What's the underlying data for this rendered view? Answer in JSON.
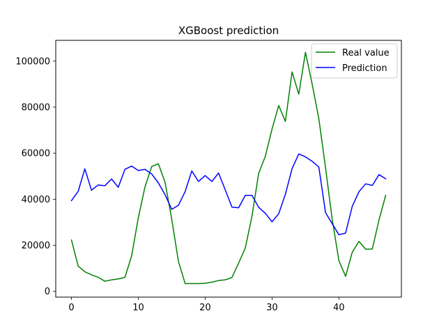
{
  "chart_data": {
    "type": "line",
    "title": "XGBoost prediction",
    "xlabel": "",
    "ylabel": "",
    "xlim": [
      -2.35,
      49.35
    ],
    "ylim": [
      -2500,
      109000
    ],
    "xticks": [
      0,
      10,
      20,
      30,
      40
    ],
    "yticks": [
      0,
      20000,
      40000,
      60000,
      80000,
      100000
    ],
    "grid": false,
    "legend_position": "top-right",
    "x": [
      0,
      1,
      2,
      3,
      4,
      5,
      6,
      7,
      8,
      9,
      10,
      11,
      12,
      13,
      14,
      15,
      16,
      17,
      18,
      19,
      20,
      21,
      22,
      23,
      24,
      25,
      26,
      27,
      28,
      29,
      30,
      31,
      32,
      33,
      34,
      35,
      36,
      37,
      38,
      39,
      40,
      41,
      42,
      43,
      44,
      45,
      46,
      47
    ],
    "series": [
      {
        "name": "Real value",
        "color": "#008000",
        "values": [
          22300,
          11000,
          8500,
          7200,
          6100,
          4400,
          5000,
          5400,
          6100,
          15400,
          32000,
          45400,
          54200,
          55400,
          47400,
          31300,
          13000,
          3400,
          3400,
          3400,
          3500,
          4000,
          4700,
          5000,
          6000,
          12300,
          18800,
          32700,
          51200,
          58700,
          70500,
          80700,
          73800,
          95300,
          85600,
          103800,
          90000,
          75000,
          53700,
          31300,
          13400,
          6500,
          17000,
          21700,
          18300,
          18400,
          31000,
          41700
        ]
      },
      {
        "name": "Prediction",
        "color": "#0000ff",
        "values": [
          39400,
          43400,
          53200,
          43900,
          46200,
          45900,
          48800,
          45200,
          53000,
          54400,
          52500,
          53000,
          51000,
          47100,
          42000,
          35600,
          37400,
          43300,
          52300,
          47700,
          50300,
          47700,
          51400,
          44100,
          36600,
          36300,
          41700,
          41700,
          36500,
          33900,
          30200,
          33700,
          42200,
          53300,
          59700,
          58400,
          56500,
          54000,
          34200,
          29400,
          24600,
          25300,
          36900,
          43300,
          46700,
          46000,
          50700,
          48900
        ]
      }
    ]
  }
}
